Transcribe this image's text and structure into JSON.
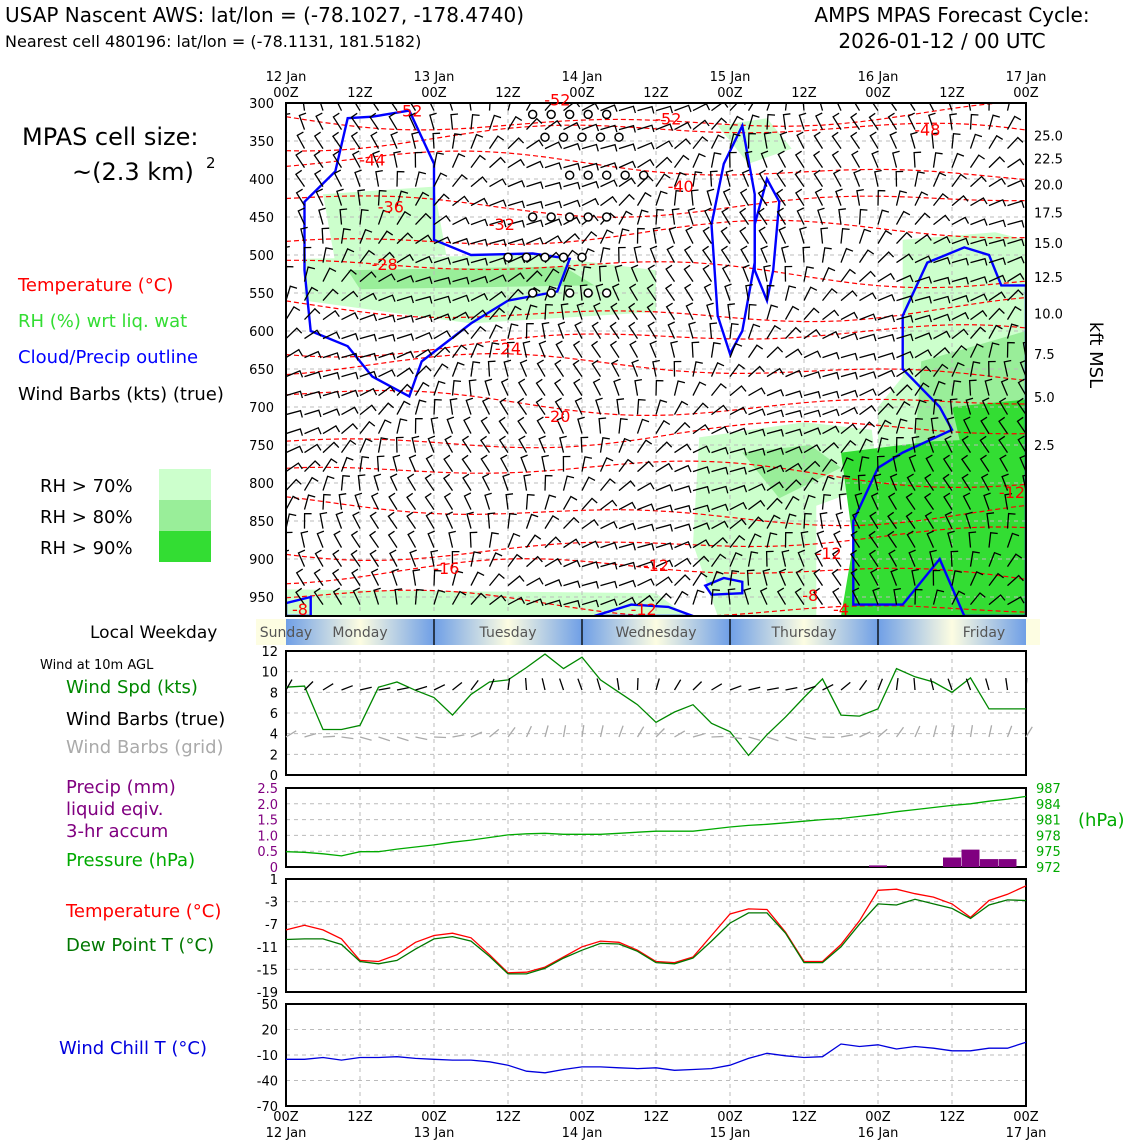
{
  "header": {
    "title_left": "USAP Nascent AWS: lat/lon = (-78.1027, -178.4740)",
    "subtitle_left": "Nearest cell 480196: lat/lon = (-78.1131, 181.5182)",
    "title_right": "AMPS MPAS Forecast Cycle:",
    "subtitle_right": "2026-01-12 / 00 UTC"
  },
  "legend_left": {
    "cell_size_label": "MPAS cell size:",
    "cell_size_value": "~(2.3 km)",
    "cell_size_exp": "2",
    "temperature": "Temperature (°C)",
    "rh": "RH (%) wrt liq. wat",
    "cloud": "Cloud/Precip outline",
    "wind": "Wind Barbs (kts) (true)",
    "rh70": "RH > 70%",
    "rh80": "RH > 80%",
    "rh90": "RH > 90%",
    "local_weekday": "Local Weekday",
    "wind10m": "Wind at 10m AGL",
    "wind_spd": "Wind Spd (kts)",
    "barbs_true": "Wind Barbs (true)",
    "barbs_grid": "Wind Barbs (grid)",
    "precip1": "Precip (mm)",
    "precip2": "liquid eqiv.",
    "precip3": "3-hr accum",
    "pressure": "Pressure (hPa)",
    "temp2": "Temperature (°C)",
    "dew": "Dew Point T (°C)",
    "windchill": "Wind Chill T (°C)"
  },
  "colors": {
    "temp": "#ff0000",
    "rh_label": "#33dd33",
    "cloud": "#0000ff",
    "rh70": "#ccffcc",
    "rh80": "#99ee99",
    "rh90": "#33dd33",
    "spd": "#008800",
    "precip": "#800080",
    "pressure": "#00aa00",
    "dew": "#007700",
    "windchill": "#0000dd",
    "grid_barb": "#aaaaaa"
  },
  "time_axis": {
    "top_dates": [
      "12 Jan",
      "",
      "13 Jan",
      "",
      "14 Jan",
      "",
      "15 Jan",
      "",
      "16 Jan",
      "",
      "17 Jan"
    ],
    "hours": [
      "00Z",
      "12Z",
      "00Z",
      "12Z",
      "00Z",
      "12Z",
      "00Z",
      "12Z",
      "00Z",
      "12Z",
      "00Z"
    ],
    "bottom_dates": [
      "12 Jan",
      "",
      "13 Jan",
      "",
      "14 Jan",
      "",
      "15 Jan",
      "",
      "16 Jan",
      "",
      "17 Jan"
    ]
  },
  "weekdays": [
    "Sunday",
    "Monday",
    "Tuesday",
    "Wednesday",
    "Thursday",
    "Friday"
  ],
  "chart_data": [
    {
      "type": "contour",
      "name": "upper-air-time-height",
      "y_axis_label": "pressure (hPa)",
      "pressure_ticks": [
        300,
        350,
        400,
        450,
        500,
        550,
        600,
        650,
        700,
        750,
        800,
        850,
        900,
        950
      ],
      "ylim": [
        300,
        975
      ],
      "right_axis_label": "kft MSL",
      "kft_ticks": [
        25.0,
        22.5,
        20.0,
        17.5,
        15.0,
        12.5,
        10.0,
        7.5,
        5.0,
        2.5
      ],
      "kft_tick_labels": [
        "25.0",
        "22.5",
        "20.0",
        "17.5",
        "15.0",
        "12.5",
        "10.0",
        "7.5",
        "5.0",
        "2.5"
      ],
      "temp_contour_labels": [
        "-52",
        "-52",
        "-52",
        "-48",
        "-44",
        "-40",
        "-36",
        "-32",
        "-28",
        "-24",
        "-20",
        "-16",
        "-12",
        "-12",
        "-12",
        "-12",
        "-8",
        "-8",
        "-4"
      ],
      "x_range_hours": [
        0,
        120
      ]
    },
    {
      "type": "line",
      "name": "surface-wind-speed",
      "ylim": [
        0,
        12
      ],
      "yticks": [
        "0",
        "2",
        "4",
        "6",
        "8",
        "10",
        "12"
      ],
      "x": [
        0,
        3,
        6,
        9,
        12,
        15,
        18,
        21,
        24,
        27,
        30,
        33,
        36,
        39,
        42,
        45,
        48,
        51,
        54,
        57,
        60,
        63,
        66,
        69,
        72,
        75,
        78,
        81,
        84,
        87,
        90,
        93,
        96,
        99,
        102,
        105,
        108,
        111,
        114,
        117,
        120
      ],
      "values": [
        8.5,
        8.6,
        4.4,
        4.4,
        4.8,
        8.5,
        9.0,
        8.2,
        7.5,
        5.8,
        7.8,
        9.0,
        9.2,
        10.4,
        11.7,
        10.3,
        11.4,
        9.2,
        8.0,
        6.8,
        5.1,
        6.1,
        6.8,
        5.0,
        4.2,
        1.9,
        3.9,
        5.6,
        7.5,
        9.3,
        5.8,
        5.7,
        6.4,
        10.3,
        9.5,
        9.0,
        8.0,
        9.4,
        6.4,
        6.4,
        6.4
      ]
    },
    {
      "type": "bar+line",
      "name": "precip-pressure",
      "precip_ylim": [
        0,
        2.5
      ],
      "precip_ticks": [
        "0",
        "0.5",
        "1.0",
        "1.5",
        "2.0",
        "2.5"
      ],
      "precip_x": [
        96,
        108,
        111,
        114,
        117
      ],
      "precip_values": [
        0.05,
        0.3,
        0.55,
        0.25,
        0.25
      ],
      "pressure_ylim": [
        972,
        987
      ],
      "pressure_ticks": [
        "972",
        "975",
        "978",
        "981",
        "984",
        "987"
      ],
      "pressure_unit": "(hPa)",
      "pressure_x": [
        0,
        3,
        6,
        9,
        12,
        15,
        18,
        21,
        24,
        27,
        30,
        33,
        36,
        39,
        42,
        45,
        48,
        51,
        54,
        57,
        60,
        63,
        66,
        69,
        72,
        75,
        78,
        81,
        84,
        87,
        90,
        93,
        96,
        99,
        102,
        105,
        108,
        111,
        114,
        117,
        120
      ],
      "pressure_values": [
        974.9,
        974.8,
        974.5,
        974.1,
        974.9,
        974.9,
        975.4,
        975.8,
        976.2,
        976.7,
        977.1,
        977.6,
        978.1,
        978.3,
        978.4,
        978.2,
        978.2,
        978.2,
        978.4,
        978.6,
        978.8,
        978.8,
        978.8,
        979.2,
        979.6,
        979.9,
        980.1,
        980.4,
        980.7,
        981.0,
        981.2,
        981.6,
        982.0,
        982.5,
        982.9,
        983.3,
        983.7,
        984.0,
        984.5,
        984.9,
        985.4
      ]
    },
    {
      "type": "line",
      "name": "temperature-dewpoint",
      "ylim": [
        -19,
        1
      ],
      "yticks": [
        "1",
        "-3",
        "-7",
        "-11",
        "-15",
        "-19"
      ],
      "x": [
        0,
        3,
        6,
        9,
        12,
        15,
        18,
        21,
        24,
        27,
        30,
        33,
        36,
        39,
        42,
        45,
        48,
        51,
        54,
        57,
        60,
        63,
        66,
        69,
        72,
        75,
        78,
        81,
        84,
        87,
        90,
        93,
        96,
        99,
        102,
        105,
        108,
        111,
        114,
        117,
        120
      ],
      "series": [
        {
          "name": "Temperature",
          "values": [
            -8,
            -7.2,
            -8,
            -9.6,
            -13.4,
            -13.6,
            -12.4,
            -10.2,
            -9,
            -8.6,
            -9.4,
            -12.4,
            -15.6,
            -15.5,
            -14.6,
            -12.8,
            -11,
            -10,
            -10.2,
            -11.6,
            -13.6,
            -13.8,
            -12.8,
            -9,
            -5.2,
            -4.3,
            -4.4,
            -8.4,
            -13.6,
            -13.6,
            -10.6,
            -6.4,
            -1,
            -0.8,
            -1.6,
            -2.2,
            -3.4,
            -5.8,
            -2.8,
            -1.7,
            -0.2
          ]
        },
        {
          "name": "Dew Point",
          "values": [
            -9.7,
            -9.6,
            -9.6,
            -10.6,
            -13.6,
            -14,
            -13.4,
            -11.4,
            -9.6,
            -9.2,
            -10,
            -12.7,
            -15.8,
            -15.8,
            -14.8,
            -13,
            -11.6,
            -10.4,
            -10.5,
            -11.8,
            -13.8,
            -14,
            -13,
            -10,
            -6.8,
            -5,
            -5,
            -8.6,
            -13.8,
            -13.8,
            -11,
            -7,
            -3.4,
            -3.6,
            -2.6,
            -3.4,
            -4.2,
            -6,
            -3.6,
            -2.7,
            -2.8
          ]
        }
      ]
    },
    {
      "type": "line",
      "name": "wind-chill",
      "ylim": [
        -70,
        50
      ],
      "yticks": [
        "50",
        "20",
        "-10",
        "-40",
        "-70"
      ],
      "x": [
        0,
        3,
        6,
        9,
        12,
        15,
        18,
        21,
        24,
        27,
        30,
        33,
        36,
        39,
        42,
        45,
        48,
        51,
        54,
        57,
        60,
        63,
        66,
        69,
        72,
        75,
        78,
        81,
        84,
        87,
        90,
        93,
        96,
        99,
        102,
        105,
        108,
        111,
        114,
        117,
        120
      ],
      "values": [
        -15,
        -15,
        -13,
        -16,
        -13,
        -13,
        -12,
        -14,
        -15,
        -16,
        -16,
        -18,
        -22,
        -29,
        -31,
        -27,
        -24,
        -24,
        -25,
        -26,
        -25,
        -28,
        -27,
        -26,
        -22,
        -14,
        -8,
        -11,
        -13,
        -12,
        3,
        0,
        2,
        -3,
        0,
        -2,
        -5,
        -5,
        -2,
        -2,
        5
      ]
    }
  ]
}
